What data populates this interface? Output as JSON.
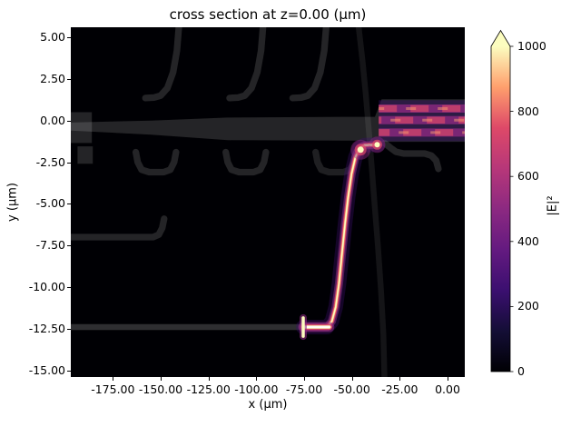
{
  "figure": {
    "title": "cross section at z=0.00 (μm)",
    "xlabel": "x (μm)",
    "ylabel": "y (μm)"
  },
  "chart_data": {
    "type": "heatmap",
    "title": "cross section at z=0.00 (μm)",
    "xlabel": "x (μm)",
    "ylabel": "y (μm)",
    "xlim": [
      -197,
      9
    ],
    "ylim": [
      -15.4,
      5.6
    ],
    "x_ticks": [
      -175,
      -150,
      -125,
      -100,
      -75,
      -50,
      -25,
      0
    ],
    "x_tick_labels": [
      "-175.00",
      "-150.00",
      "-125.00",
      "-100.00",
      "-75.00",
      "-50.00",
      "-25.00",
      "0.00"
    ],
    "y_ticks": [
      5,
      2.5,
      0,
      -2.5,
      -5,
      -7.5,
      -10,
      -12.5,
      -15
    ],
    "y_tick_labels": [
      "5.00",
      "2.50",
      "0.00",
      "-2.50",
      "-5.00",
      "-7.50",
      "-10.00",
      "-12.50",
      "-15.00"
    ],
    "grid": false,
    "colormap": "magma",
    "colorbar": {
      "label": "|E|²",
      "range": [
        0,
        1000
      ],
      "extend": "max",
      "ticks": [
        0,
        200,
        400,
        600,
        800,
        1000
      ],
      "tick_labels": [
        "0",
        "200",
        "400",
        "600",
        "800",
        "1000"
      ],
      "gradient": [
        "#000004",
        "#140e36",
        "#3b0f70",
        "#641a80",
        "#8c2981",
        "#b73779",
        "#de4968",
        "#fe9f6d",
        "#fcfdbf"
      ]
    },
    "colors": {
      "bg": "#000004",
      "structure": "#ffffff",
      "glow_outer": "#3b0f70",
      "glow_mid": "#8c2981",
      "glow_pink": "#de4968",
      "glow_orange": "#fe9f6d",
      "core": "#fcfdbf",
      "stripe_base": "#8c2981",
      "stripe_bright": "#de4968",
      "stripe_hot": "#fe9f6d"
    },
    "structures": [
      {
        "name": "bus-waveguide",
        "mode": "stroke",
        "w": 0.35,
        "o": 0.18,
        "pts": [
          [
            -197,
            -12.4
          ],
          [
            -63,
            -12.4
          ]
        ]
      },
      {
        "name": "bus-bend",
        "mode": "stroke",
        "w": 0.35,
        "o": 0.18,
        "pts": [
          [
            -63,
            -12.4
          ],
          [
            -60.5,
            -12.05
          ],
          [
            -58.5,
            -11.2
          ],
          [
            -56.8,
            -9.8
          ],
          [
            -55.2,
            -8
          ],
          [
            -53.6,
            -6.2
          ],
          [
            -52,
            -4.6
          ],
          [
            -50.2,
            -3.2
          ],
          [
            -48.2,
            -2.2
          ],
          [
            -46,
            -1.65
          ],
          [
            -43.5,
            -1.48
          ],
          [
            -36,
            -1.45
          ]
        ]
      },
      {
        "name": "central-taper",
        "mode": "fill",
        "o": 0.14,
        "pts": [
          [
            -197,
            -0.12
          ],
          [
            -155,
            0
          ],
          [
            -115,
            0.18
          ],
          [
            -55,
            0.22
          ],
          [
            -38,
            0.22
          ],
          [
            -38,
            -1.2
          ],
          [
            -55,
            -1.2
          ],
          [
            -115,
            -1.18
          ],
          [
            -155,
            -0.85
          ],
          [
            -197,
            -0.6
          ]
        ]
      },
      {
        "name": "left-slab",
        "mode": "fill",
        "o": 0.14,
        "pts": [
          [
            -197,
            0.5
          ],
          [
            -186,
            0.5
          ],
          [
            -186,
            -1.35
          ],
          [
            -197,
            -1.35
          ]
        ]
      },
      {
        "name": "left-block",
        "mode": "fill",
        "o": 0.14,
        "pts": [
          [
            -193.5,
            -1.55
          ],
          [
            -185.5,
            -1.55
          ],
          [
            -185.5,
            -2.6
          ],
          [
            -193.5,
            -2.6
          ]
        ]
      },
      {
        "name": "output-slab",
        "mode": "fill",
        "o": 0.14,
        "pts": [
          [
            -38,
            0.22
          ],
          [
            -34.5,
            1.28
          ],
          [
            9,
            1.28
          ],
          [
            9,
            -1.28
          ],
          [
            -34.5,
            -1.28
          ],
          [
            -38,
            -1.2
          ]
        ]
      },
      {
        "name": "top-bend-1",
        "mode": "stroke",
        "w": 0.4,
        "o": 0.14,
        "pts": [
          [
            -140.5,
            5.6
          ],
          [
            -141.5,
            4.2
          ],
          [
            -143.5,
            2.9
          ],
          [
            -146.5,
            1.95
          ],
          [
            -150,
            1.5
          ],
          [
            -153.5,
            1.38
          ],
          [
            -158,
            1.35
          ]
        ]
      },
      {
        "name": "top-bend-2",
        "mode": "stroke",
        "w": 0.4,
        "o": 0.14,
        "pts": [
          [
            -96.5,
            5.6
          ],
          [
            -97.5,
            4.2
          ],
          [
            -99.5,
            2.9
          ],
          [
            -102.5,
            1.95
          ],
          [
            -106,
            1.5
          ],
          [
            -109.5,
            1.38
          ],
          [
            -114,
            1.35
          ]
        ]
      },
      {
        "name": "top-bend-3",
        "mode": "stroke",
        "w": 0.4,
        "o": 0.14,
        "pts": [
          [
            -63.5,
            5.6
          ],
          [
            -64.5,
            4.2
          ],
          [
            -66.5,
            2.9
          ],
          [
            -69.5,
            1.95
          ],
          [
            -73,
            1.5
          ],
          [
            -76.5,
            1.38
          ],
          [
            -81,
            1.35
          ]
        ]
      },
      {
        "name": "mid-bracket-1",
        "mode": "stroke",
        "w": 0.4,
        "o": 0.14,
        "pts": [
          [
            -163,
            -1.9
          ],
          [
            -162,
            -2.5
          ],
          [
            -160,
            -2.95
          ],
          [
            -156,
            -3.1
          ],
          [
            -148.5,
            -3.1
          ],
          [
            -145,
            -2.95
          ],
          [
            -143,
            -2.5
          ],
          [
            -142,
            -1.9
          ]
        ]
      },
      {
        "name": "mid-bracket-2",
        "mode": "stroke",
        "w": 0.4,
        "o": 0.14,
        "pts": [
          [
            -116,
            -1.9
          ],
          [
            -115,
            -2.5
          ],
          [
            -113,
            -2.95
          ],
          [
            -109,
            -3.1
          ],
          [
            -101.5,
            -3.1
          ],
          [
            -98,
            -2.95
          ],
          [
            -96,
            -2.5
          ],
          [
            -95,
            -1.9
          ]
        ]
      },
      {
        "name": "mid-bracket-3",
        "mode": "stroke",
        "w": 0.4,
        "o": 0.12,
        "pts": [
          [
            -69,
            -1.9
          ],
          [
            -68,
            -2.5
          ],
          [
            -66,
            -2.95
          ],
          [
            -62,
            -3.1
          ],
          [
            -54.5,
            -3.1
          ],
          [
            -51,
            -2.95
          ],
          [
            -49,
            -2.5
          ],
          [
            -48,
            -1.9
          ]
        ]
      },
      {
        "name": "right-under-curve",
        "mode": "stroke",
        "w": 0.4,
        "o": 0.14,
        "pts": [
          [
            -33,
            -1.35
          ],
          [
            -30,
            -1.62
          ],
          [
            -27,
            -1.88
          ],
          [
            -23,
            -1.98
          ],
          [
            -12,
            -1.98
          ],
          [
            -8.5,
            -2.1
          ],
          [
            -6,
            -2.4
          ],
          [
            -4.8,
            -2.9
          ]
        ]
      },
      {
        "name": "lower-line",
        "mode": "stroke",
        "w": 0.4,
        "o": 0.14,
        "pts": [
          [
            -197,
            -7
          ],
          [
            -154,
            -7
          ],
          [
            -151,
            -6.85
          ],
          [
            -149.2,
            -6.45
          ],
          [
            -148.2,
            -5.9
          ]
        ]
      },
      {
        "name": "right-long-bend",
        "mode": "stroke",
        "w": 0.35,
        "o": 0.08,
        "pts": [
          [
            -46.5,
            5.6
          ],
          [
            -44.5,
            3.6
          ],
          [
            -42.8,
            1.6
          ],
          [
            -41.3,
            -0.4
          ],
          [
            -39.8,
            -2.6
          ],
          [
            -38.2,
            -5
          ],
          [
            -36.4,
            -7.6
          ],
          [
            -34.8,
            -10.2
          ],
          [
            -33.6,
            -12.8
          ],
          [
            -33,
            -15.4
          ]
        ]
      }
    ],
    "field": {
      "peak_value": 1000,
      "main_path": [
        [
          -75.5,
          -12.4
        ],
        [
          -63,
          -12.4
        ],
        [
          -60.5,
          -12.05
        ],
        [
          -58.5,
          -11.2
        ],
        [
          -56.8,
          -9.8
        ],
        [
          -55.2,
          -8
        ],
        [
          -53.6,
          -6.2
        ],
        [
          -52,
          -4.6
        ],
        [
          -50.2,
          -3.2
        ],
        [
          -48.2,
          -2.2
        ],
        [
          -46,
          -1.65
        ],
        [
          -43.5,
          -1.48
        ],
        [
          -36.5,
          -1.45
        ]
      ],
      "input_segment": [
        [
          -75.5,
          -12.4
        ],
        [
          -61.8,
          -12.4
        ]
      ],
      "source_tick": [
        [
          -75.5,
          -11.85
        ],
        [
          -75.5,
          -12.95
        ]
      ],
      "hot_spot": [
        -45.5,
        -1.75
      ],
      "entry_spot": [
        -36.8,
        -1.45
      ],
      "output": {
        "x0": -36,
        "x1": 9,
        "top": 1.22,
        "bottom": -1.24,
        "stripe_ys": [
          0.72,
          0.02,
          -0.72
        ]
      }
    }
  }
}
